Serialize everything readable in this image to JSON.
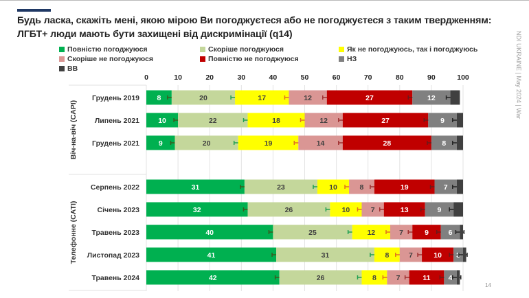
{
  "header": {
    "title_line1": "Будь ласка, скажіть мені, якою мірою Ви погоджуєтеся або не погоджуєтеся з таким твердженням:",
    "title_line2": "ЛГБТ+ люди мають бути захищені від дискримінації (q14)",
    "side_note": "NDI UKRAINE | May 2024 | War",
    "page_number": "14"
  },
  "chart_data": {
    "type": "bar",
    "orientation": "horizontal-stacked-100",
    "title": "ЛГБТ+ люди мають бути захищені від дискримінації (q14)",
    "xlabel": "",
    "ylabel": "",
    "xlim": [
      0,
      100
    ],
    "x_ticks": [
      "0",
      "10",
      "20",
      "30",
      "40",
      "50",
      "60",
      "70",
      "80",
      "90",
      "100"
    ],
    "grid": true,
    "legend_position": "top",
    "groups": [
      {
        "label": "Віч-на-віч (CAPI)",
        "categories": [
          "Грудень 2019",
          "Липень 2021",
          "Грудень 2021"
        ]
      },
      {
        "label": "Телефонне (CATI)",
        "categories": [
          "Серпень 2022",
          "Січень 2023",
          "Травень 2023",
          "Листопад 2023",
          "Травень 2024"
        ]
      }
    ],
    "categories": [
      "Грудень 2019",
      "Липень 2021",
      "Грудень 2021",
      "Серпень 2022",
      "Січень 2023",
      "Травень 2023",
      "Листопад 2023",
      "Травень 2024"
    ],
    "series": [
      {
        "name": "Повністю погоджуюся",
        "color": "#00b050",
        "label_color": "#ffffff",
        "error_color": "#3a5a1f",
        "values": [
          8,
          10,
          9,
          31,
          32,
          40,
          41,
          42
        ],
        "labeled": true
      },
      {
        "name": "Скоріше погоджуюся",
        "color": "#c4d79b",
        "label_color": "#404040",
        "error_color": "#1fa050",
        "values": [
          20,
          22,
          20,
          23,
          26,
          25,
          31,
          26
        ],
        "labeled": true
      },
      {
        "name": "Як не погоджуюсь, так і погоджуюсь",
        "color": "#ffff00",
        "label_color": "#404040",
        "error_color": "#e07020",
        "values": [
          17,
          18,
          19,
          10,
          10,
          12,
          8,
          8
        ],
        "labeled": true
      },
      {
        "name": "Скоріше не погоджуюся",
        "color": "#da9694",
        "label_color": "#404040",
        "error_color": "#a03030",
        "values": [
          12,
          12,
          14,
          8,
          7,
          7,
          7,
          7
        ],
        "labeled": true
      },
      {
        "name": "Повністю не погоджуюся",
        "color": "#c00000",
        "label_color": "#ffffff",
        "error_color": "#6a1a1a",
        "values": [
          27,
          27,
          28,
          19,
          13,
          9,
          10,
          11
        ],
        "labeled": true
      },
      {
        "name": "НЗ",
        "color": "#808080",
        "label_color": "#ffffff",
        "error_color": "#222222",
        "values": [
          12,
          9,
          8,
          7,
          9,
          6,
          3,
          4
        ],
        "labeled": true
      },
      {
        "name": "ВВ",
        "color": "#404040",
        "label_color": "#ffffff",
        "error_color": "#222222",
        "values": [
          3,
          2,
          2,
          2,
          3,
          1,
          1,
          1
        ],
        "labeled": false
      }
    ],
    "error_bars": true
  },
  "legend": {
    "items": [
      {
        "label": "Повністю погоджуюся",
        "color": "#00b050"
      },
      {
        "label": "Скоріше погоджуюся",
        "color": "#c4d79b"
      },
      {
        "label": "Як не погоджуюсь, так і погоджуюсь",
        "color": "#ffff00"
      },
      {
        "label": "Скоріше не погоджуюся",
        "color": "#da9694"
      },
      {
        "label": "Повністю не погоджуюся",
        "color": "#c00000"
      },
      {
        "label": "НЗ",
        "color": "#808080"
      },
      {
        "label": "ВВ",
        "color": "#404040"
      }
    ]
  }
}
